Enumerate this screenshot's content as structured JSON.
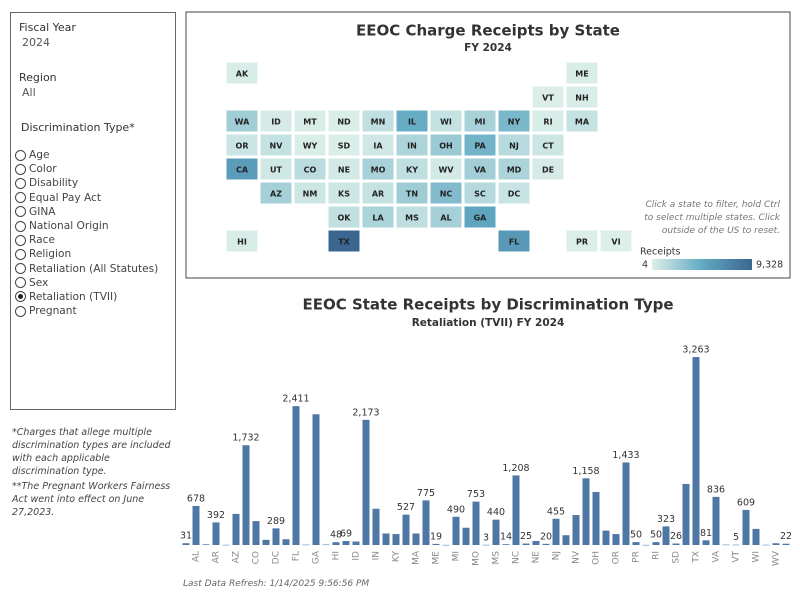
{
  "filters": {
    "fiscal_year": {
      "label": "Fiscal Year",
      "value": "2024"
    },
    "region": {
      "label": "Region",
      "value": "All"
    },
    "discrimination_type": {
      "label": "Discrimination Type*",
      "options": [
        "Age",
        "Color",
        "Disability",
        "Equal Pay Act",
        "GINA",
        "National Origin",
        "Race",
        "Religion",
        "Retaliation (All Statutes)",
        "Sex",
        "Retaliation (TVII)",
        "Pregnant"
      ],
      "selected": 10
    }
  },
  "notes": [
    "*Charges that allege multiple discrimination types are included with each applicable discrimination type.",
    "**The Pregnant Workers Fairness Act went into effect on June 27,2023."
  ],
  "map": {
    "type": "choropleth",
    "title": "EEOC Charge Receipts by State",
    "subtitle": "FY 2024",
    "states": [
      "AK",
      "ME",
      "VT",
      "NH",
      "WA",
      "ID",
      "MT",
      "ND",
      "MN",
      "IL",
      "WI",
      "MI",
      "NY",
      "RI",
      "MA",
      "OR",
      "NV",
      "WY",
      "SD",
      "IA",
      "IN",
      "OH",
      "PA",
      "NJ",
      "CT",
      "CA",
      "UT",
      "CO",
      "NE",
      "MO",
      "KY",
      "WV",
      "VA",
      "MD",
      "DE",
      "AZ",
      "NM",
      "KS",
      "AR",
      "TN",
      "NC",
      "SC",
      "DC",
      "OK",
      "LA",
      "MS",
      "AL",
      "GA",
      "HI",
      "TX",
      "FL",
      "PR",
      "VI"
    ],
    "values": [
      110,
      120,
      60,
      150,
      2300,
      250,
      120,
      90,
      1100,
      4500,
      900,
      2000,
      3800,
      150,
      900,
      700,
      900,
      80,
      100,
      450,
      1800,
      2500,
      4000,
      1400,
      600,
      5600,
      500,
      1300,
      400,
      2000,
      1100,
      400,
      2200,
      1800,
      250,
      2100,
      600,
      600,
      900,
      2400,
      3500,
      1500,
      800,
      1000,
      1900,
      1200,
      2100,
      5000,
      150,
      9328,
      5800,
      60,
      4
    ],
    "color_scale": [
      "#dcefe9",
      "#62aac3",
      "#3b6690"
    ],
    "legend_title": "Receipts",
    "legend_ticks": [
      4,
      {
        "value": 9328,
        "label": "9,328"
      }
    ],
    "instructions": "Click a state to filter, hold Ctrl to select  multiple states. Click outside of the US to reset."
  },
  "chart_data": {
    "type": "bar",
    "title": "EEOC State Receipts by Discrimination Type",
    "subtitle": "Retaliation (TVII) FY 2024",
    "categories": [
      null,
      "AL",
      null,
      "AR",
      null,
      "AZ",
      null,
      "CO",
      null,
      "DC",
      null,
      "FL",
      null,
      "GA",
      null,
      "HI",
      null,
      "ID",
      null,
      "IN",
      null,
      "KY",
      null,
      "MA",
      null,
      "ME",
      null,
      "MI",
      null,
      "MO",
      null,
      "MS",
      null,
      "NC",
      null,
      "NE",
      null,
      "NJ",
      null,
      "NV",
      null,
      "OH",
      null,
      "OR",
      null,
      "PR",
      null,
      "RI",
      null,
      "SD",
      null,
      "TX",
      null,
      "VA",
      null,
      "VT",
      null,
      "WI",
      null,
      "WV",
      null
    ],
    "values": [
      31,
      678,
      12,
      392,
      3,
      540,
      1732,
      415,
      90,
      289,
      100,
      2411,
      6,
      2270,
      8,
      48,
      69,
      60,
      2173,
      630,
      200,
      190,
      527,
      200,
      775,
      19,
      2,
      490,
      300,
      753,
      3,
      440,
      14,
      1208,
      25,
      70,
      20,
      455,
      170,
      520,
      1158,
      920,
      250,
      190,
      1433,
      50,
      2,
      50,
      323,
      26,
      1060,
      3263,
      81,
      836,
      6,
      5,
      609,
      280,
      4,
      30,
      22
    ],
    "value_labels": [
      "31",
      "678",
      null,
      "392",
      null,
      null,
      "1,732",
      null,
      null,
      "289",
      null,
      "2,411",
      null,
      null,
      null,
      "48",
      "69",
      null,
      "2,173",
      null,
      null,
      null,
      "527",
      null,
      "775",
      "19",
      null,
      "490",
      null,
      "753",
      "3",
      "440",
      "14",
      "1,208",
      "25",
      null,
      "20",
      "455",
      null,
      null,
      "1,158",
      null,
      null,
      null,
      "1,433",
      "50",
      null,
      "50",
      "323",
      "26",
      null,
      "3,263",
      "81",
      "836",
      null,
      "5",
      "609",
      null,
      null,
      null,
      "22"
    ],
    "color": "#4f77a6",
    "ylim": [
      0,
      3400
    ]
  },
  "footer": "Last Data Refresh: 1/14/2025 9:56:56 PM"
}
